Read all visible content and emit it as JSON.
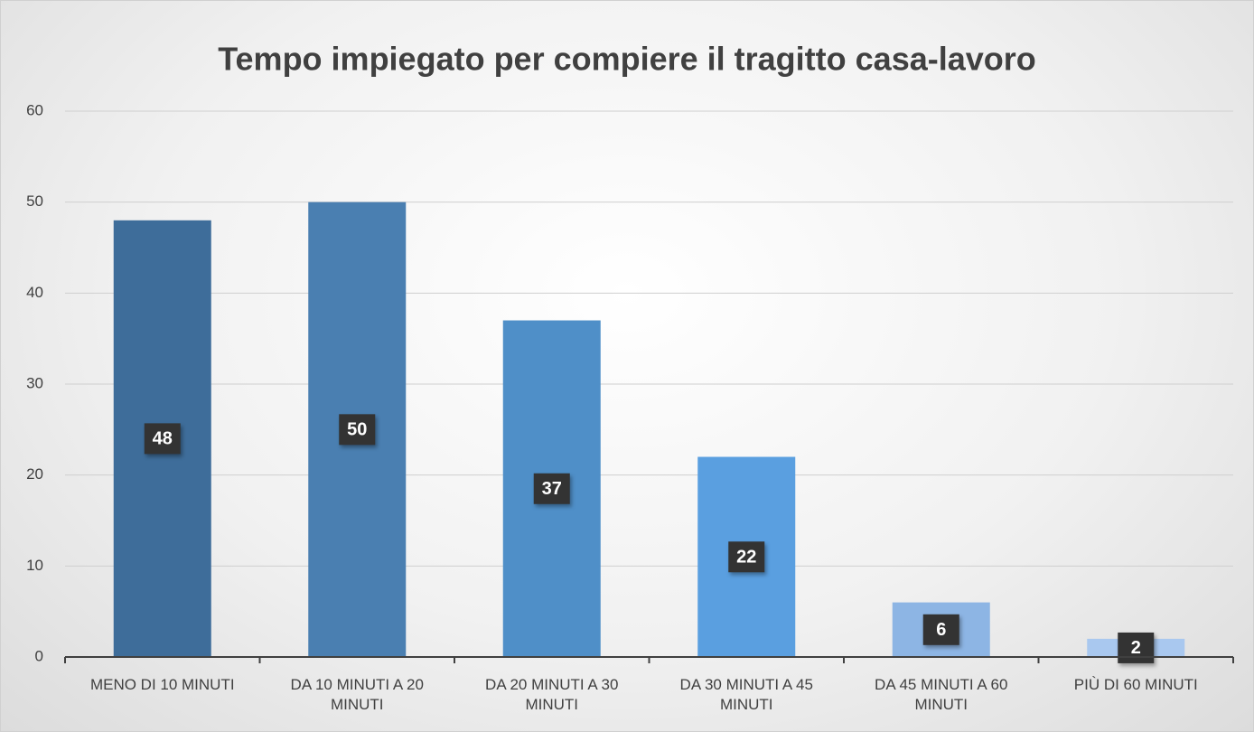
{
  "chart_data": {
    "type": "bar",
    "title": "Tempo impiegato per compiere il tragitto casa-lavoro",
    "categories": [
      "MENO DI 10 MINUTI",
      "DA 10 MINUTI A 20 MINUTI",
      "DA 20 MINUTI A 30 MINUTI",
      "DA 30 MINUTI A 45 MINUTI",
      "DA 45 MINUTI A 60 MINUTI",
      "PIÙ DI 60 MINUTI"
    ],
    "values": [
      48,
      50,
      37,
      22,
      6,
      2
    ],
    "colors": [
      "#3e6d9a",
      "#4a7fb1",
      "#4f8fc8",
      "#5a9fe0",
      "#8db5e4",
      "#a9c8ef"
    ],
    "ylim": [
      0,
      60
    ],
    "yticks": [
      0,
      10,
      20,
      30,
      40,
      50,
      60
    ],
    "grid": true
  }
}
